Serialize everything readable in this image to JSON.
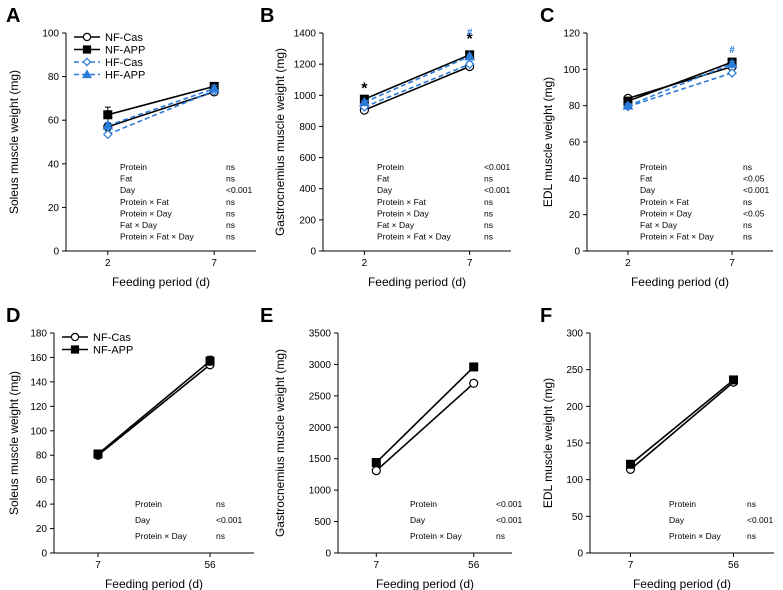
{
  "figure": {
    "colors": {
      "nf_cas": "#000000",
      "nf_app": "#000000",
      "hf_cas": "#2b7bd9",
      "hf_app": "#2b7bd9",
      "hash": "#2b7bd9",
      "star": "#000000"
    }
  },
  "chart_data": [
    {
      "label": "A",
      "type": "line",
      "ylabel": "Soleus muscle weight (mg)",
      "xlabel": "Feeding period (d)",
      "categories": [
        "2",
        "7"
      ],
      "ylim": [
        0,
        100
      ],
      "yticks": [
        0,
        20,
        40,
        60,
        80,
        100
      ],
      "legend": [
        "NF-Cas",
        "NF-APP",
        "HF-Cas",
        "HF-APP"
      ],
      "legend_position": "top-left",
      "series": [
        {
          "name": "NF-Cas",
          "style": "nf_cas",
          "values": [
            57,
            73
          ],
          "err": [
            1.5,
            1.5
          ]
        },
        {
          "name": "NF-APP",
          "style": "nf_app",
          "values": [
            62.5,
            75.5
          ],
          "err": [
            3.5,
            1.5
          ]
        },
        {
          "name": "HF-Cas",
          "style": "hf_cas",
          "values": [
            53.5,
            73.5
          ],
          "err": [
            1.5,
            1.5
          ]
        },
        {
          "name": "HF-APP",
          "style": "hf_app",
          "values": [
            57.5,
            74.5
          ],
          "err": [
            1.5,
            1.5
          ]
        }
      ],
      "stats": [
        {
          "term": "Protein",
          "p": "ns"
        },
        {
          "term": "Fat",
          "p": "ns"
        },
        {
          "term": "Day",
          "p": "<0.001"
        },
        {
          "term": "Protein × Fat",
          "p": "ns"
        },
        {
          "term": "Protein × Day",
          "p": "ns"
        },
        {
          "term": "Fat × Day",
          "p": "ns"
        },
        {
          "term": "Protein × Fat × Day",
          "p": "ns"
        }
      ],
      "annotations": []
    },
    {
      "label": "B",
      "type": "line",
      "ylabel": "Gastrocnemius muscle weight (mg)",
      "xlabel": "Feeding period (d)",
      "categories": [
        "2",
        "7"
      ],
      "ylim": [
        0,
        1400
      ],
      "yticks": [
        0,
        200,
        400,
        600,
        800,
        1000,
        1200,
        1400
      ],
      "legend": [],
      "series": [
        {
          "name": "NF-Cas",
          "style": "nf_cas",
          "values": [
            905,
            1185
          ],
          "err": [
            12,
            15
          ]
        },
        {
          "name": "NF-APP",
          "style": "nf_app",
          "values": [
            975,
            1260
          ],
          "err": [
            12,
            15
          ]
        },
        {
          "name": "HF-Cas",
          "style": "hf_cas",
          "values": [
            925,
            1200
          ],
          "err": [
            12,
            15
          ]
        },
        {
          "name": "HF-APP",
          "style": "hf_app",
          "values": [
            955,
            1250
          ],
          "err": [
            12,
            15
          ]
        }
      ],
      "stats": [
        {
          "term": "Protein",
          "p": "<0.001"
        },
        {
          "term": "Fat",
          "p": "ns"
        },
        {
          "term": "Day",
          "p": "<0.001"
        },
        {
          "term": "Protein × Fat",
          "p": "ns"
        },
        {
          "term": "Protein × Day",
          "p": "ns"
        },
        {
          "term": "Fat × Day",
          "p": "ns"
        },
        {
          "term": "Protein × Fat × Day",
          "p": "ns"
        }
      ],
      "annotations": [
        {
          "text": "*",
          "x": 0,
          "y": 1010,
          "style": "star",
          "size": 16
        },
        {
          "text": "*",
          "x": 1,
          "y": 1330,
          "style": "star",
          "size": 16
        },
        {
          "text": "#",
          "x": 1,
          "y": 1385,
          "style": "hash",
          "size": 10
        }
      ]
    },
    {
      "label": "C",
      "type": "line",
      "ylabel": "EDL muscle weight (mg)",
      "xlabel": "Feeding period (d)",
      "categories": [
        "2",
        "7"
      ],
      "ylim": [
        0,
        120
      ],
      "yticks": [
        0,
        20,
        40,
        60,
        80,
        100,
        120
      ],
      "legend": [],
      "series": [
        {
          "name": "NF-Cas",
          "style": "nf_cas",
          "values": [
            84,
            101.5
          ],
          "err": [
            1.2,
            1.5
          ]
        },
        {
          "name": "NF-APP",
          "style": "nf_app",
          "values": [
            82.5,
            104
          ],
          "err": [
            1.2,
            1.5
          ]
        },
        {
          "name": "HF-Cas",
          "style": "hf_cas",
          "values": [
            79.5,
            98
          ],
          "err": [
            1.2,
            1.5
          ]
        },
        {
          "name": "HF-APP",
          "style": "hf_app",
          "values": [
            80,
            103
          ],
          "err": [
            1.2,
            1.5
          ]
        }
      ],
      "stats": [
        {
          "term": "Protein",
          "p": "ns"
        },
        {
          "term": "Fat",
          "p": "<0.05"
        },
        {
          "term": "Day",
          "p": "<0.001"
        },
        {
          "term": "Protein × Fat",
          "p": "ns"
        },
        {
          "term": "Protein × Day",
          "p": "<0.05"
        },
        {
          "term": "Fat × Day",
          "p": "ns"
        },
        {
          "term": "Protein × Fat × Day",
          "p": "ns"
        }
      ],
      "annotations": [
        {
          "text": "#",
          "x": 1,
          "y": 109,
          "style": "hash",
          "size": 10
        }
      ]
    },
    {
      "label": "D",
      "type": "line",
      "ylabel": "Soleus muscle weight (mg)",
      "xlabel": "Feeding period (d)",
      "categories": [
        "7",
        "56"
      ],
      "ylim": [
        0,
        180
      ],
      "yticks": [
        0,
        20,
        40,
        60,
        80,
        100,
        120,
        140,
        160,
        180
      ],
      "legend": [
        "NF-Cas",
        "NF-APP"
      ],
      "legend_position": "top-left",
      "series": [
        {
          "name": "NF-Cas",
          "style": "nf_cas",
          "values": [
            80,
            154
          ],
          "err": [
            1.5,
            4
          ]
        },
        {
          "name": "NF-APP",
          "style": "nf_app",
          "values": [
            81,
            157
          ],
          "err": [
            1.5,
            4
          ]
        }
      ],
      "stats": [
        {
          "term": "Protein",
          "p": "ns"
        },
        {
          "term": "Day",
          "p": "<0.001"
        },
        {
          "term": "Protein × Day",
          "p": "ns"
        }
      ],
      "annotations": []
    },
    {
      "label": "E",
      "type": "line",
      "ylabel": "Gastrocnemius muscle weight (mg)",
      "xlabel": "Feeding period (d)",
      "categories": [
        "7",
        "56"
      ],
      "ylim": [
        0,
        3500
      ],
      "yticks": [
        0,
        500,
        1000,
        1500,
        2000,
        2500,
        3000,
        3500
      ],
      "legend": [],
      "series": [
        {
          "name": "NF-Cas",
          "style": "nf_cas",
          "values": [
            1310,
            2700
          ],
          "err": [
            20,
            30
          ]
        },
        {
          "name": "NF-APP",
          "style": "nf_app",
          "values": [
            1440,
            2960
          ],
          "err": [
            20,
            40
          ]
        }
      ],
      "stats": [
        {
          "term": "Protein",
          "p": "<0.001"
        },
        {
          "term": "Day",
          "p": "<0.001"
        },
        {
          "term": "Protein × Day",
          "p": "ns"
        }
      ],
      "annotations": []
    },
    {
      "label": "F",
      "type": "line",
      "ylabel": "EDL muscle weight (mg)",
      "xlabel": "Feeding period (d)",
      "categories": [
        "7",
        "56"
      ],
      "ylim": [
        0,
        300
      ],
      "yticks": [
        0,
        50,
        100,
        150,
        200,
        250,
        300
      ],
      "legend": [],
      "series": [
        {
          "name": "NF-Cas",
          "style": "nf_cas",
          "values": [
            114,
            233
          ],
          "err": [
            2,
            4
          ]
        },
        {
          "name": "NF-APP",
          "style": "nf_app",
          "values": [
            121,
            236
          ],
          "err": [
            2,
            4
          ]
        }
      ],
      "stats": [
        {
          "term": "Protein",
          "p": "ns"
        },
        {
          "term": "Day",
          "p": "<0.001"
        },
        {
          "term": "Protein × Day",
          "p": "ns"
        }
      ],
      "annotations": []
    }
  ]
}
